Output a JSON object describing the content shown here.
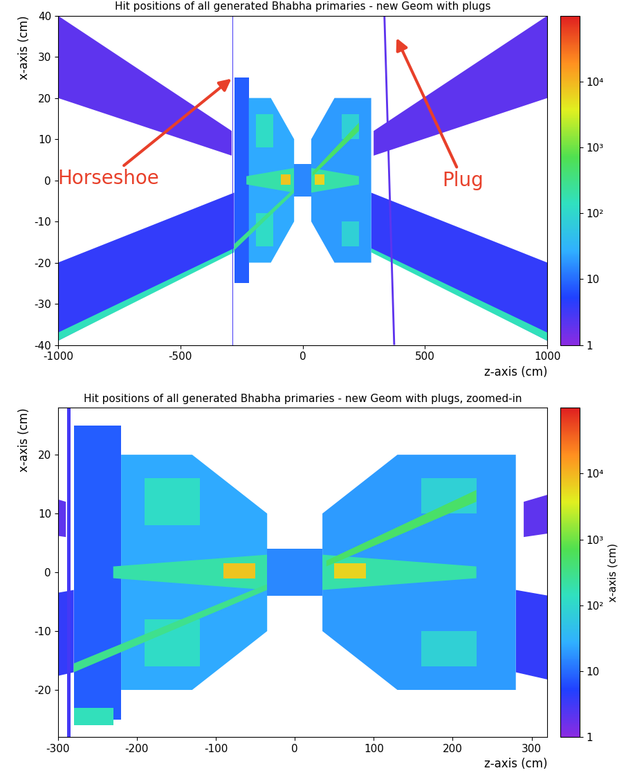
{
  "chart_data": [
    {
      "type": "heatmap",
      "title": "Hit positions of all generated Bhabha primaries - new Geom with plugs",
      "x_label": "z-axis (cm)",
      "y_label": "x-axis (cm)",
      "xlim": [
        -1000,
        1000
      ],
      "ylim": [
        -40,
        40
      ],
      "xticks": [
        -1000,
        -500,
        0,
        500,
        1000
      ],
      "yticks": [
        -40,
        -30,
        -20,
        -10,
        0,
        10,
        20,
        30,
        40
      ],
      "colorbar": {
        "range": [
          1,
          100000
        ],
        "ticks": [
          1,
          10,
          {
            "value": 100,
            "label": "10²"
          },
          {
            "value": 1000,
            "label": "10³"
          },
          {
            "value": 10000,
            "label": "10⁴"
          }
        ]
      },
      "annotations": [
        {
          "text": "Horseshoe",
          "target": [
            -285,
            25
          ]
        },
        {
          "text": "Plug",
          "target": [
            380,
            35
          ]
        }
      ],
      "regions": [
        {
          "points": [
            [
              -1000,
              40
            ],
            [
              -1000,
              20
            ],
            [
              -290,
              6
            ],
            [
              -290,
              12
            ]
          ],
          "value": 2
        },
        {
          "points": [
            [
              1000,
              40
            ],
            [
              1000,
              20
            ],
            [
              290,
              6
            ],
            [
              290,
              12
            ]
          ],
          "value": 2
        },
        {
          "points": [
            [
              -1000,
              -20
            ],
            [
              -1000,
              -39
            ],
            [
              -280,
              -17
            ],
            [
              -280,
              -3
            ]
          ],
          "value": 4
        },
        {
          "points": [
            [
              1000,
              -20
            ],
            [
              1000,
              -39
            ],
            [
              280,
              -17
            ],
            [
              280,
              -3
            ]
          ],
          "value": 4
        },
        {
          "points": [
            [
              -1000,
              -37
            ],
            [
              -1000,
              -39
            ],
            [
              -280,
              -17.5
            ],
            [
              -280,
              -16.5
            ]
          ],
          "value": 150
        },
        {
          "points": [
            [
              1000,
              -37
            ],
            [
              1000,
              -39
            ],
            [
              280,
              -17.5
            ],
            [
              280,
              -16.5
            ]
          ],
          "value": 150
        },
        {
          "points": [
            [
              -280,
              -25
            ],
            [
              -280,
              25
            ],
            [
              -220,
              25
            ],
            [
              -220,
              -25
            ]
          ],
          "value": 8
        },
        {
          "points": [
            [
              -288,
              -40
            ],
            [
              -288,
              40
            ],
            [
              -284,
              40
            ],
            [
              -284,
              -40
            ]
          ],
          "value": 3
        },
        {
          "points": [
            [
              330,
              40
            ],
            [
              338,
              40
            ],
            [
              378,
              -40
            ],
            [
              370,
              -40
            ]
          ],
          "value": 2
        },
        {
          "points": [
            [
              -220,
              -20
            ],
            [
              -130,
              -20
            ],
            [
              -35,
              -10
            ],
            [
              -35,
              10
            ],
            [
              -130,
              20
            ],
            [
              -220,
              20
            ]
          ],
          "value": 25
        },
        {
          "points": [
            [
              35,
              -10
            ],
            [
              35,
              10
            ],
            [
              130,
              20
            ],
            [
              280,
              20
            ],
            [
              280,
              -20
            ],
            [
              130,
              -20
            ]
          ],
          "value": 20
        },
        {
          "points": [
            [
              -190,
              8
            ],
            [
              -190,
              16
            ],
            [
              -120,
              16
            ],
            [
              -120,
              8
            ]
          ],
          "value": 120
        },
        {
          "points": [
            [
              -190,
              -16
            ],
            [
              -190,
              -8
            ],
            [
              -120,
              -8
            ],
            [
              -120,
              -16
            ]
          ],
          "value": 120
        },
        {
          "points": [
            [
              160,
              10
            ],
            [
              160,
              16
            ],
            [
              230,
              16
            ],
            [
              230,
              10
            ]
          ],
          "value": 80
        },
        {
          "points": [
            [
              160,
              -16
            ],
            [
              160,
              -10
            ],
            [
              230,
              -10
            ],
            [
              230,
              -16
            ]
          ],
          "value": 80
        },
        {
          "points": [
            [
              -230,
              -1
            ],
            [
              -230,
              1
            ],
            [
              -35,
              3
            ],
            [
              -35,
              -3
            ]
          ],
          "value": 200
        },
        {
          "points": [
            [
              230,
              -1
            ],
            [
              230,
              1
            ],
            [
              35,
              3
            ],
            [
              35,
              -3
            ]
          ],
          "value": 200
        },
        {
          "points": [
            [
              40,
              1
            ],
            [
              40,
              2
            ],
            [
              230,
              14
            ],
            [
              230,
              12
            ]
          ],
          "value": 500
        },
        {
          "points": [
            [
              -280,
              -17
            ],
            [
              -280,
              -15.5
            ],
            [
              -35,
              -2
            ],
            [
              -35,
              -3
            ]
          ],
          "value": 300
        },
        {
          "points": [
            [
              -35,
              -4
            ],
            [
              -35,
              4
            ],
            [
              35,
              4
            ],
            [
              35,
              -4
            ]
          ],
          "value": 15
        },
        {
          "points": [
            [
              -90,
              -1
            ],
            [
              -90,
              1.5
            ],
            [
              -50,
              1.5
            ],
            [
              -50,
              -1
            ]
          ],
          "value": 8000
        },
        {
          "points": [
            [
              50,
              -1
            ],
            [
              50,
              1.5
            ],
            [
              90,
              1.5
            ],
            [
              90,
              -1
            ]
          ],
          "value": 6000
        }
      ]
    },
    {
      "type": "heatmap",
      "title": "Hit positions of all generated Bhabha primaries - new Geom with plugs, zoomed-in",
      "x_label": "z-axis (cm)",
      "y_label": "x-axis (cm)",
      "colorbar_label": "x-axis (cm)",
      "xlim": [
        -300,
        320
      ],
      "ylim": [
        -28,
        28
      ],
      "xticks": [
        -300,
        -200,
        -100,
        0,
        100,
        200,
        300
      ],
      "yticks": [
        -20,
        -10,
        0,
        10,
        20
      ],
      "colorbar": {
        "range": [
          1,
          100000
        ],
        "ticks": [
          1,
          10,
          {
            "value": 100,
            "label": "10²"
          },
          {
            "value": 1000,
            "label": "10³"
          },
          {
            "value": 10000,
            "label": "10⁴"
          }
        ]
      },
      "regions": [
        {
          "points": [
            [
              -1000,
              40
            ],
            [
              -1000,
              20
            ],
            [
              -290,
              6
            ],
            [
              -290,
              12
            ]
          ],
          "value": 2
        },
        {
          "points": [
            [
              1000,
              40
            ],
            [
              1000,
              20
            ],
            [
              290,
              6
            ],
            [
              290,
              12
            ]
          ],
          "value": 2
        },
        {
          "points": [
            [
              -1000,
              -20
            ],
            [
              -1000,
              -39
            ],
            [
              -280,
              -17
            ],
            [
              -280,
              -3
            ]
          ],
          "value": 4
        },
        {
          "points": [
            [
              1000,
              -20
            ],
            [
              1000,
              -39
            ],
            [
              280,
              -17
            ],
            [
              280,
              -3
            ]
          ],
          "value": 4
        },
        {
          "points": [
            [
              -280,
              -25
            ],
            [
              -280,
              25
            ],
            [
              -220,
              25
            ],
            [
              -220,
              -25
            ]
          ],
          "value": 8
        },
        {
          "points": [
            [
              -280,
              -26
            ],
            [
              -280,
              -23
            ],
            [
              -230,
              -23
            ],
            [
              -230,
              -26
            ]
          ],
          "value": 150
        },
        {
          "points": [
            [
              -288,
              -40
            ],
            [
              -288,
              40
            ],
            [
              -284,
              40
            ],
            [
              -284,
              -40
            ]
          ],
          "value": 3
        },
        {
          "points": [
            [
              -220,
              -20
            ],
            [
              -130,
              -20
            ],
            [
              -35,
              -10
            ],
            [
              -35,
              10
            ],
            [
              -130,
              20
            ],
            [
              -220,
              20
            ]
          ],
          "value": 25
        },
        {
          "points": [
            [
              35,
              -10
            ],
            [
              35,
              10
            ],
            [
              130,
              20
            ],
            [
              280,
              20
            ],
            [
              280,
              -20
            ],
            [
              130,
              -20
            ]
          ],
          "value": 20
        },
        {
          "points": [
            [
              -190,
              8
            ],
            [
              -190,
              16
            ],
            [
              -120,
              16
            ],
            [
              -120,
              8
            ]
          ],
          "value": 120
        },
        {
          "points": [
            [
              -190,
              -16
            ],
            [
              -190,
              -8
            ],
            [
              -120,
              -8
            ],
            [
              -120,
              -16
            ]
          ],
          "value": 120
        },
        {
          "points": [
            [
              160,
              10
            ],
            [
              160,
              16
            ],
            [
              230,
              16
            ],
            [
              230,
              10
            ]
          ],
          "value": 80
        },
        {
          "points": [
            [
              160,
              -16
            ],
            [
              160,
              -10
            ],
            [
              230,
              -10
            ],
            [
              230,
              -16
            ]
          ],
          "value": 80
        },
        {
          "points": [
            [
              -230,
              -1
            ],
            [
              -230,
              1
            ],
            [
              -35,
              3
            ],
            [
              -35,
              -3
            ]
          ],
          "value": 200
        },
        {
          "points": [
            [
              230,
              -1
            ],
            [
              230,
              1
            ],
            [
              35,
              3
            ],
            [
              35,
              -3
            ]
          ],
          "value": 200
        },
        {
          "points": [
            [
              40,
              1
            ],
            [
              40,
              2
            ],
            [
              230,
              14
            ],
            [
              230,
              12
            ]
          ],
          "value": 500
        },
        {
          "points": [
            [
              -280,
              -17
            ],
            [
              -280,
              -15.5
            ],
            [
              -35,
              -2
            ],
            [
              -35,
              -3
            ]
          ],
          "value": 300
        },
        {
          "points": [
            [
              -35,
              -4
            ],
            [
              -35,
              4
            ],
            [
              35,
              4
            ],
            [
              35,
              -4
            ]
          ],
          "value": 15
        },
        {
          "points": [
            [
              -90,
              -1
            ],
            [
              -90,
              1.5
            ],
            [
              -50,
              1.5
            ],
            [
              -50,
              -1
            ]
          ],
          "value": 8000
        },
        {
          "points": [
            [
              50,
              -1
            ],
            [
              50,
              1.5
            ],
            [
              90,
              1.5
            ],
            [
              90,
              -1
            ]
          ],
          "value": 6000
        }
      ]
    }
  ]
}
